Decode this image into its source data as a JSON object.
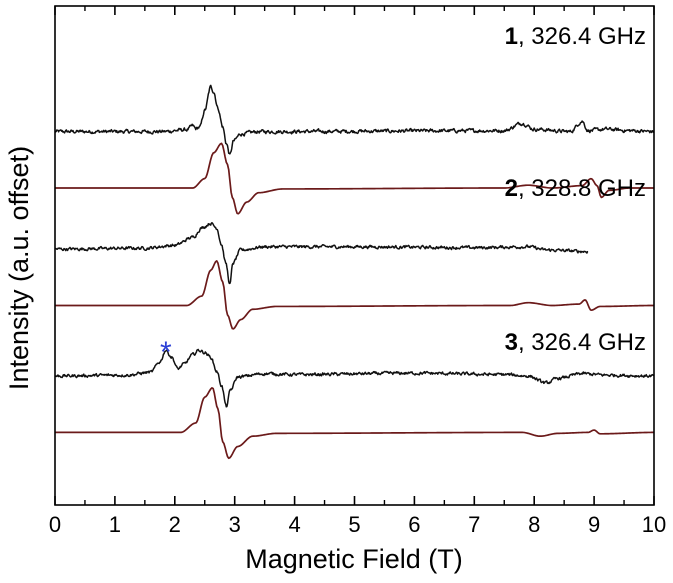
{
  "chart_data": {
    "type": "line",
    "title": "",
    "xlabel": "Magnetic Field (T)",
    "ylabel": "Intensity (a.u. offset)",
    "xlim": [
      0,
      10
    ],
    "xticks": [
      "0",
      "1",
      "2",
      "3",
      "4",
      "5",
      "6",
      "7",
      "8",
      "9",
      "10"
    ],
    "yticks_shown": false,
    "grid": false,
    "legend": "none",
    "colors": {
      "experiment": "#111111",
      "simulation": "#6b1a1a",
      "asterisk": "#2b3fd6"
    },
    "labels": [
      {
        "number": "1",
        "text": ", 326.4 GHz"
      },
      {
        "number": "2",
        "text": ", 328.8 GHz"
      },
      {
        "number": "3",
        "text": ", 326.4 GHz"
      }
    ],
    "annotation": {
      "text": "*",
      "x": 1.85
    },
    "series": [
      {
        "kind": "experiment",
        "offset": 5.2,
        "x_end": 10.0,
        "noise": 0.07,
        "points": [
          [
            0,
            0
          ],
          [
            1.8,
            0
          ],
          [
            2.2,
            0.04
          ],
          [
            2.3,
            0.12
          ],
          [
            2.35,
            0.06
          ],
          [
            2.42,
            0.1
          ],
          [
            2.5,
            0.45
          ],
          [
            2.6,
            0.95
          ],
          [
            2.65,
            0.85
          ],
          [
            2.72,
            0.5
          ],
          [
            2.8,
            0.1
          ],
          [
            2.86,
            -0.25
          ],
          [
            2.92,
            -0.5
          ],
          [
            2.98,
            -0.2
          ],
          [
            3.1,
            -0.05
          ],
          [
            3.4,
            0
          ],
          [
            7.5,
            0.02
          ],
          [
            7.8,
            0.18
          ],
          [
            8.0,
            0.05
          ],
          [
            8.6,
            0
          ],
          [
            8.8,
            0.22
          ],
          [
            8.9,
            0.02
          ],
          [
            9.2,
            0.05
          ],
          [
            9.6,
            0.02
          ],
          [
            10,
            0
          ]
        ]
      },
      {
        "kind": "simulation",
        "offset": 4.0,
        "x_end": 10.0,
        "noise": 0,
        "points": [
          [
            0,
            0
          ],
          [
            2.3,
            0
          ],
          [
            2.5,
            0.2
          ],
          [
            2.65,
            0.75
          ],
          [
            2.78,
            0.95
          ],
          [
            2.88,
            0.5
          ],
          [
            2.96,
            -0.2
          ],
          [
            3.05,
            -0.55
          ],
          [
            3.2,
            -0.3
          ],
          [
            3.4,
            -0.1
          ],
          [
            3.8,
            -0.02
          ],
          [
            7.5,
            0
          ],
          [
            7.9,
            0.06
          ],
          [
            8.3,
            0.0
          ],
          [
            8.8,
            0.05
          ],
          [
            8.95,
            0.2
          ],
          [
            9.05,
            0.05
          ],
          [
            9.12,
            -0.2
          ],
          [
            9.25,
            -0.05
          ],
          [
            9.6,
            0
          ],
          [
            10,
            0
          ]
        ]
      },
      {
        "kind": "experiment",
        "offset": 2.7,
        "x_end": 8.9,
        "noise": 0.06,
        "points": [
          [
            0,
            0
          ],
          [
            1.5,
            0.02
          ],
          [
            2.0,
            0.08
          ],
          [
            2.3,
            0.25
          ],
          [
            2.45,
            0.45
          ],
          [
            2.6,
            0.55
          ],
          [
            2.7,
            0.45
          ],
          [
            2.78,
            0.1
          ],
          [
            2.85,
            -0.3
          ],
          [
            2.92,
            -0.75
          ],
          [
            2.97,
            -0.3
          ],
          [
            3.1,
            -0.02
          ],
          [
            3.5,
            0.05
          ],
          [
            5.0,
            0.05
          ],
          [
            7.0,
            0.03
          ],
          [
            7.9,
            0.05
          ],
          [
            8.2,
            -0.02
          ],
          [
            8.9,
            -0.05
          ]
        ]
      },
      {
        "kind": "simulation",
        "offset": 1.5,
        "x_end": 10.0,
        "noise": 0,
        "points": [
          [
            0,
            0
          ],
          [
            2.2,
            0
          ],
          [
            2.45,
            0.2
          ],
          [
            2.6,
            0.75
          ],
          [
            2.7,
            0.95
          ],
          [
            2.8,
            0.5
          ],
          [
            2.88,
            -0.2
          ],
          [
            2.97,
            -0.5
          ],
          [
            3.1,
            -0.3
          ],
          [
            3.3,
            -0.08
          ],
          [
            3.7,
            -0.02
          ],
          [
            7.6,
            0
          ],
          [
            7.9,
            0.06
          ],
          [
            8.3,
            0.0
          ],
          [
            8.75,
            0.03
          ],
          [
            8.85,
            0.12
          ],
          [
            8.95,
            -0.1
          ],
          [
            9.1,
            -0.02
          ],
          [
            10,
            0
          ]
        ]
      },
      {
        "kind": "experiment",
        "offset": 0.0,
        "x_end": 10.0,
        "noise": 0.06,
        "points": [
          [
            0,
            0
          ],
          [
            1.2,
            0.02
          ],
          [
            1.6,
            0.08
          ],
          [
            1.75,
            0.3
          ],
          [
            1.85,
            0.55
          ],
          [
            1.95,
            0.4
          ],
          [
            2.05,
            0.15
          ],
          [
            2.15,
            0.25
          ],
          [
            2.3,
            0.45
          ],
          [
            2.4,
            0.55
          ],
          [
            2.5,
            0.5
          ],
          [
            2.6,
            0.4
          ],
          [
            2.7,
            0.1
          ],
          [
            2.78,
            -0.2
          ],
          [
            2.86,
            -0.65
          ],
          [
            2.93,
            -0.3
          ],
          [
            3.05,
            -0.02
          ],
          [
            3.5,
            0.05
          ],
          [
            4.0,
            0.03
          ],
          [
            6.0,
            0.06
          ],
          [
            7.5,
            0.03
          ],
          [
            7.9,
            0.0
          ],
          [
            8.2,
            -0.15
          ],
          [
            8.4,
            -0.05
          ],
          [
            8.8,
            0.05
          ],
          [
            9.2,
            0.02
          ],
          [
            10,
            0
          ]
        ]
      },
      {
        "kind": "simulation",
        "offset": -1.2,
        "x_end": 10.0,
        "noise": 0,
        "points": [
          [
            0,
            0
          ],
          [
            2.1,
            0
          ],
          [
            2.35,
            0.2
          ],
          [
            2.5,
            0.75
          ],
          [
            2.63,
            0.95
          ],
          [
            2.72,
            0.5
          ],
          [
            2.8,
            -0.2
          ],
          [
            2.9,
            -0.55
          ],
          [
            3.05,
            -0.3
          ],
          [
            3.3,
            -0.08
          ],
          [
            3.7,
            -0.02
          ],
          [
            7.8,
            0
          ],
          [
            8.1,
            -0.08
          ],
          [
            8.4,
            -0.02
          ],
          [
            8.9,
            0.0
          ],
          [
            9.0,
            0.05
          ],
          [
            9.1,
            -0.03
          ],
          [
            10,
            0
          ]
        ]
      }
    ]
  }
}
